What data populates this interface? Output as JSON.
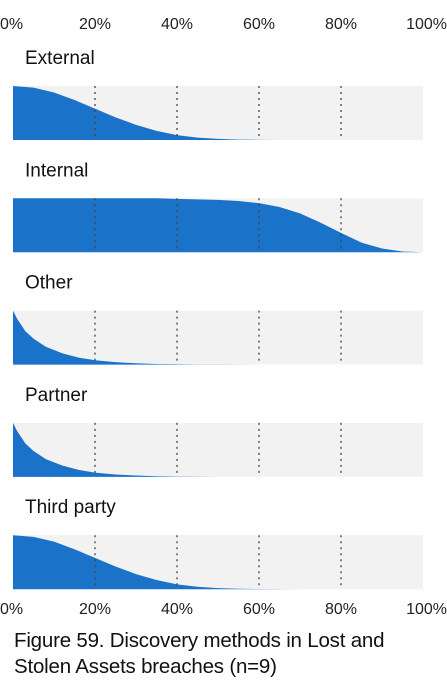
{
  "chart_data": {
    "type": "area",
    "x_ticks": [
      "0%",
      "20%",
      "40%",
      "60%",
      "80%",
      "100%"
    ],
    "xlim": [
      0,
      100
    ],
    "grid": true,
    "color": "#1a73c8",
    "panel_background": "#f2f2f2",
    "series": [
      {
        "name": "External",
        "x": [
          0,
          5,
          10,
          15,
          20,
          25,
          30,
          35,
          40,
          45,
          50,
          55,
          60,
          65,
          70,
          75,
          80,
          85,
          90,
          95,
          100
        ],
        "y": [
          1.0,
          0.97,
          0.88,
          0.74,
          0.58,
          0.42,
          0.28,
          0.17,
          0.09,
          0.045,
          0.02,
          0.008,
          0.003,
          0.001,
          0,
          0,
          0,
          0,
          0,
          0,
          0
        ]
      },
      {
        "name": "Internal",
        "x": [
          0,
          5,
          10,
          15,
          20,
          25,
          30,
          35,
          40,
          45,
          50,
          55,
          60,
          65,
          70,
          75,
          80,
          85,
          90,
          95,
          100
        ],
        "y": [
          1.0,
          1.0,
          1.0,
          1.0,
          1.0,
          1.0,
          1.0,
          1.0,
          0.99,
          0.98,
          0.97,
          0.95,
          0.91,
          0.84,
          0.72,
          0.55,
          0.36,
          0.18,
          0.07,
          0.015,
          0
        ]
      },
      {
        "name": "Other",
        "x": [
          0,
          1,
          3,
          5,
          8,
          12,
          16,
          20,
          25,
          30,
          35,
          40,
          45,
          50,
          60,
          70,
          80,
          90,
          100
        ],
        "y": [
          1.0,
          0.85,
          0.62,
          0.48,
          0.33,
          0.21,
          0.13,
          0.08,
          0.045,
          0.025,
          0.012,
          0.006,
          0.003,
          0.001,
          0,
          0,
          0,
          0,
          0
        ]
      },
      {
        "name": "Partner",
        "x": [
          0,
          1,
          3,
          5,
          8,
          12,
          16,
          20,
          25,
          30,
          35,
          40,
          45,
          50,
          60,
          70,
          80,
          90,
          100
        ],
        "y": [
          1.0,
          0.85,
          0.62,
          0.48,
          0.33,
          0.21,
          0.13,
          0.08,
          0.045,
          0.025,
          0.012,
          0.006,
          0.003,
          0.001,
          0,
          0,
          0,
          0,
          0
        ]
      },
      {
        "name": "Third party",
        "x": [
          0,
          5,
          10,
          15,
          20,
          25,
          30,
          35,
          40,
          45,
          50,
          55,
          60,
          65,
          70,
          75,
          80,
          85,
          90,
          95,
          100
        ],
        "y": [
          1.0,
          0.97,
          0.88,
          0.74,
          0.58,
          0.42,
          0.28,
          0.17,
          0.09,
          0.045,
          0.02,
          0.008,
          0.003,
          0.001,
          0,
          0,
          0,
          0,
          0,
          0,
          0
        ]
      }
    ]
  },
  "caption": "Figure 59. Discovery methods in Lost and Stolen Assets breaches (n=9)"
}
